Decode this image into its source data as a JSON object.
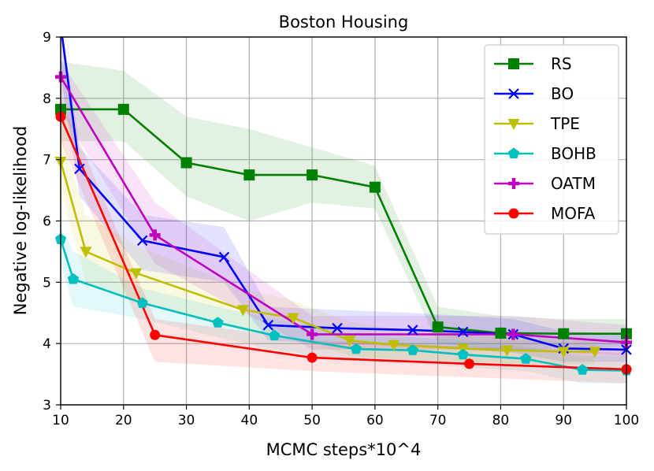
{
  "chart_data": {
    "type": "line",
    "title": "Boston Housing",
    "xlabel": "MCMC steps*10^4",
    "ylabel": "Negative log-likelihood",
    "xlim": [
      10,
      100
    ],
    "ylim": [
      3,
      9
    ],
    "xticks": [
      "10",
      "20",
      "30",
      "40",
      "50",
      "60",
      "70",
      "80",
      "90",
      "100"
    ],
    "yticks": [
      "3",
      "4",
      "5",
      "6",
      "7",
      "8",
      "9"
    ],
    "grid": true,
    "legend_position": "top-right",
    "series": [
      {
        "name": "RS",
        "color": "#008000",
        "marker": "square",
        "x": [
          10,
          20,
          30,
          40,
          50,
          60,
          70,
          80,
          90,
          100
        ],
        "y": [
          7.82,
          7.82,
          6.95,
          6.75,
          6.75,
          6.55,
          4.27,
          4.17,
          4.16,
          4.16
        ],
        "upper": [
          8.6,
          8.45,
          7.7,
          7.5,
          7.2,
          6.9,
          4.6,
          4.45,
          4.4,
          4.4
        ],
        "lower": [
          7.3,
          7.3,
          6.4,
          6.0,
          6.3,
          6.2,
          4.0,
          3.9,
          3.9,
          3.95
        ]
      },
      {
        "name": "BO",
        "color": "#0000ff",
        "marker": "x",
        "x": [
          10,
          13,
          23,
          36,
          43,
          54,
          66,
          74,
          82,
          90,
          100
        ],
        "y": [
          9.2,
          6.85,
          5.68,
          5.41,
          4.3,
          4.25,
          4.22,
          4.19,
          4.15,
          3.92,
          3.9
        ],
        "upper": [
          9.3,
          7.2,
          6.1,
          5.9,
          4.6,
          4.55,
          4.5,
          4.45,
          4.4,
          4.2,
          4.15
        ],
        "lower": [
          8.4,
          6.4,
          5.2,
          5.0,
          4.05,
          4.0,
          3.95,
          3.9,
          3.85,
          3.7,
          3.7
        ]
      },
      {
        "name": "TPE",
        "color": "#bfbf00",
        "marker": "triangle-down",
        "x": [
          10,
          14,
          22,
          39,
          47,
          56,
          63,
          74,
          81,
          90,
          95
        ],
        "y": [
          6.97,
          5.5,
          5.15,
          4.55,
          4.42,
          4.05,
          3.98,
          3.92,
          3.89,
          3.87,
          3.87
        ],
        "upper": [
          7.4,
          6.1,
          5.6,
          4.9,
          4.7,
          4.35,
          4.25,
          4.15,
          4.1,
          4.05,
          4.05
        ],
        "lower": [
          6.5,
          5.0,
          4.7,
          4.2,
          4.1,
          3.8,
          3.75,
          3.7,
          3.68,
          3.66,
          3.66
        ]
      },
      {
        "name": "BOHB",
        "color": "#00bfbf",
        "marker": "pentagon",
        "x": [
          10,
          12,
          23,
          35,
          44,
          57,
          66,
          74,
          84,
          93,
          100
        ],
        "y": [
          5.7,
          5.05,
          4.66,
          4.34,
          4.13,
          3.91,
          3.89,
          3.82,
          3.75,
          3.57,
          3.56
        ],
        "upper": [
          5.9,
          5.5,
          4.9,
          4.6,
          4.4,
          4.15,
          4.1,
          4.05,
          3.95,
          3.8,
          3.8
        ],
        "lower": [
          5.3,
          4.6,
          4.4,
          4.1,
          3.9,
          3.7,
          3.68,
          3.62,
          3.55,
          3.35,
          3.35
        ]
      },
      {
        "name": "OATM",
        "color": "#bf00bf",
        "marker": "plus",
        "x": [
          10,
          25,
          50,
          82,
          100
        ],
        "y": [
          8.35,
          5.77,
          4.15,
          4.15,
          4.02
        ],
        "upper": [
          8.6,
          6.3,
          4.45,
          4.45,
          4.3
        ],
        "lower": [
          7.8,
          5.3,
          3.9,
          3.9,
          3.8
        ]
      },
      {
        "name": "MOFA",
        "color": "#ff0000",
        "marker": "circle",
        "x": [
          10,
          25,
          50,
          75,
          100
        ],
        "y": [
          7.7,
          4.14,
          3.77,
          3.67,
          3.58
        ],
        "upper": [
          8.0,
          4.4,
          4.05,
          3.95,
          3.85
        ],
        "lower": [
          7.3,
          3.7,
          3.55,
          3.45,
          3.35
        ]
      }
    ]
  }
}
